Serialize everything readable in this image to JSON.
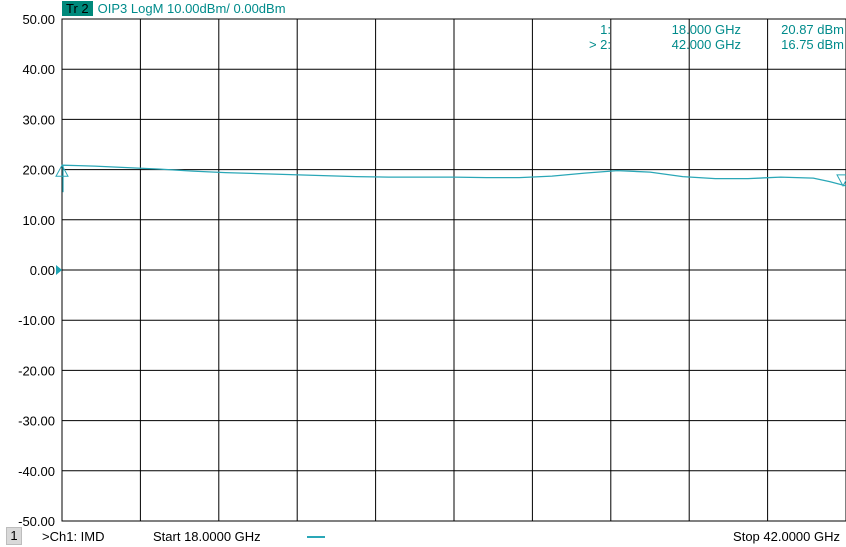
{
  "trace": {
    "badge": "Tr 2",
    "title": "OIP3 LogM 10.00dBm/  0.00dBm"
  },
  "markers": [
    {
      "id": "1:",
      "freq": "18.000 GHz",
      "value": "20.87 dBm"
    },
    {
      "id": "> 2:",
      "freq": "42.000 GHz",
      "value": "16.75 dBm"
    }
  ],
  "footer": {
    "channel_number": "1",
    "channel_label": ">Ch1: IMD",
    "start": "Start  18.0000 GHz",
    "stop": "Stop  42.0000 GHz"
  },
  "chart_data": {
    "type": "line",
    "xlim": [
      18.0,
      42.0
    ],
    "ylim": [
      -50,
      50
    ],
    "y_ticks": [
      "50.00",
      "40.00",
      "30.00",
      "20.00",
      "10.00",
      "0.00",
      "-10.00",
      "-20.00",
      "-30.00",
      "-40.00",
      "-50.00"
    ],
    "grid": true,
    "reference_level": 0.0,
    "series": [
      {
        "color": "#2aa7b7",
        "x": [
          18.0,
          18.5,
          19.0,
          20.0,
          21.0,
          22.0,
          23.0,
          24.0,
          25.0,
          26.0,
          27.0,
          28.0,
          29.0,
          30.0,
          31.0,
          32.0,
          33.0,
          34.0,
          35.0,
          36.0,
          37.0,
          38.0,
          39.0,
          40.0,
          41.0,
          41.5,
          42.0
        ],
        "y": [
          20.87,
          20.8,
          20.7,
          20.4,
          20.1,
          19.7,
          19.4,
          19.2,
          19.0,
          18.8,
          18.6,
          18.5,
          18.5,
          18.5,
          18.4,
          18.4,
          18.7,
          19.3,
          19.8,
          19.5,
          18.6,
          18.2,
          18.2,
          18.5,
          18.3,
          17.6,
          16.75
        ]
      }
    ]
  }
}
